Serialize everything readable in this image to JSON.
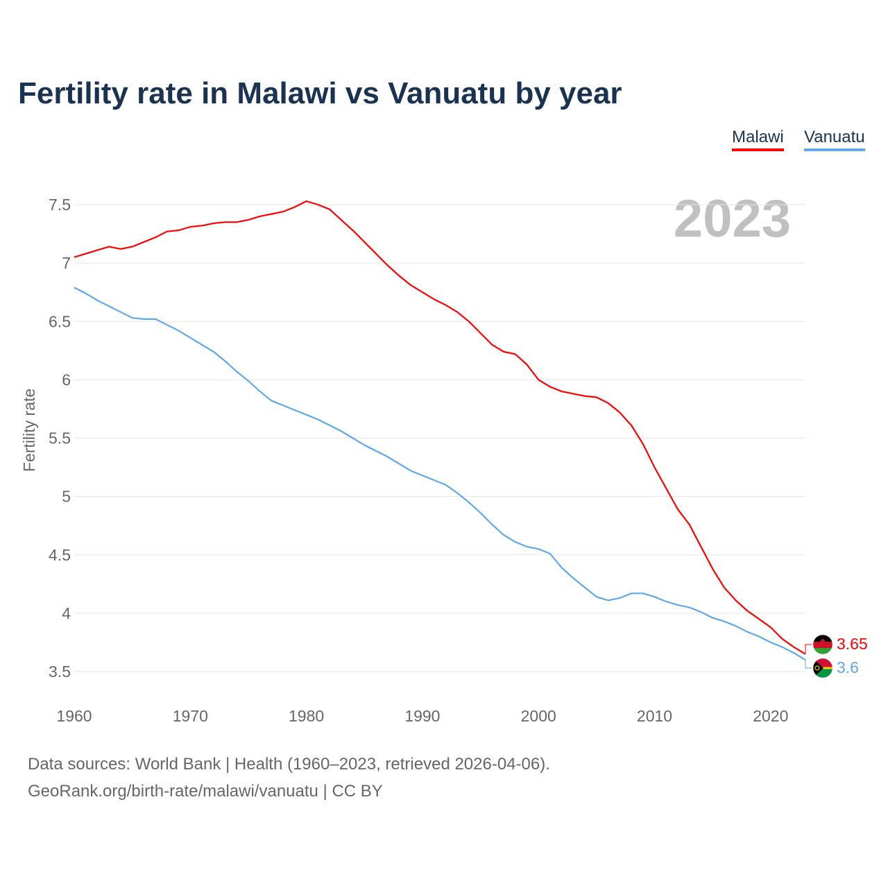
{
  "chart_data": {
    "type": "line",
    "title": "Fertility rate in Malawi vs Vanuatu by year",
    "ylabel": "Fertility rate",
    "xlabel": "",
    "year_label": "2023",
    "xlim": [
      1960,
      2023
    ],
    "ylim": [
      3.5,
      7.5
    ],
    "x_ticks": [
      "1960",
      "1970",
      "1980",
      "1990",
      "2000",
      "2010",
      "2020"
    ],
    "y_ticks": [
      "3.5",
      "4",
      "4.5",
      "5",
      "5.5",
      "6",
      "6.5",
      "7",
      "7.5"
    ],
    "grid": true,
    "legend_placement": "top-right",
    "start_year": 1960,
    "series": [
      {
        "name": "Malawi",
        "color": "#ff0000",
        "end_label": "3.65",
        "values": [
          7.05,
          7.08,
          7.11,
          7.14,
          7.12,
          7.14,
          7.18,
          7.22,
          7.27,
          7.28,
          7.31,
          7.32,
          7.34,
          7.35,
          7.35,
          7.37,
          7.4,
          7.42,
          7.44,
          7.48,
          7.53,
          7.5,
          7.46,
          7.37,
          7.28,
          7.18,
          7.08,
          6.98,
          6.89,
          6.81,
          6.75,
          6.69,
          6.64,
          6.58,
          6.5,
          6.4,
          6.3,
          6.24,
          6.22,
          6.13,
          6.0,
          5.94,
          5.9,
          5.88,
          5.86,
          5.85,
          5.8,
          5.72,
          5.61,
          5.45,
          5.25,
          5.07,
          4.89,
          4.76,
          4.57,
          4.38,
          4.22,
          4.11,
          4.02,
          3.95,
          3.88,
          3.78,
          3.71,
          3.65
        ]
      },
      {
        "name": "Vanuatu",
        "color": "#5fa8ec",
        "end_label": "3.6",
        "values": [
          6.79,
          6.74,
          6.68,
          6.63,
          6.58,
          6.53,
          6.52,
          6.52,
          6.47,
          6.42,
          6.36,
          6.3,
          6.24,
          6.16,
          6.07,
          5.99,
          5.9,
          5.82,
          5.78,
          5.74,
          5.7,
          5.66,
          5.61,
          5.56,
          5.5,
          5.44,
          5.39,
          5.34,
          5.28,
          5.22,
          5.18,
          5.14,
          5.1,
          5.03,
          4.95,
          4.86,
          4.76,
          4.67,
          4.61,
          4.57,
          4.55,
          4.51,
          4.39,
          4.3,
          4.22,
          4.14,
          4.11,
          4.13,
          4.17,
          4.17,
          4.14,
          4.1,
          4.07,
          4.05,
          4.01,
          3.96,
          3.93,
          3.89,
          3.84,
          3.8,
          3.75,
          3.71,
          3.66,
          3.6
        ]
      }
    ]
  },
  "footer": {
    "sources": "Data sources: World Bank | Health (1960–2023, retrieved 2026-04-06).",
    "credit": "GeoRank.org/birth-rate/malawi/vanuatu | CC BY"
  }
}
